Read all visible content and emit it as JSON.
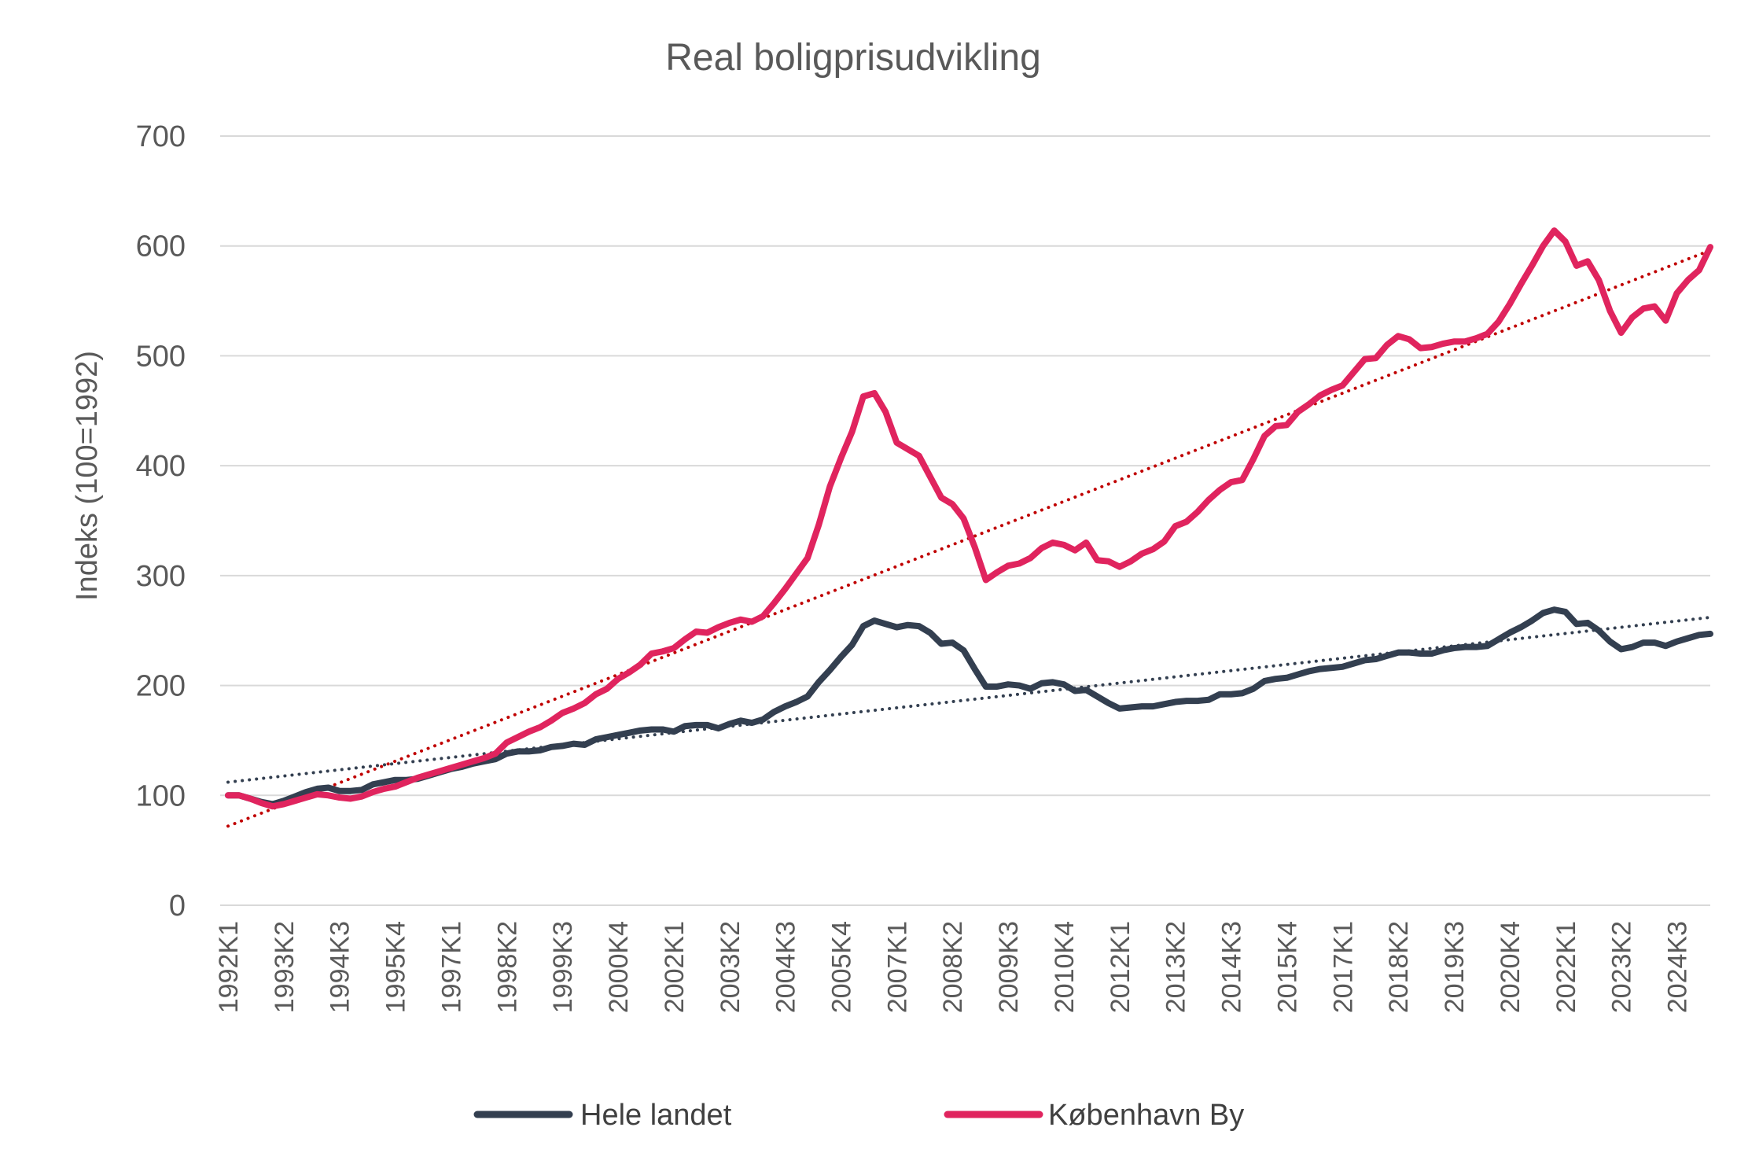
{
  "chart_data": {
    "type": "line",
    "title": "Real boligprisudvikling",
    "xlabel": "",
    "ylabel": "Indeks (100=1992)",
    "ylim": [
      0,
      700
    ],
    "yticks": [
      0,
      100,
      200,
      300,
      400,
      500,
      600,
      700
    ],
    "grid": true,
    "legend_position": "bottom",
    "x_start_year": 1992,
    "x_end_year": 2025,
    "x_tick_labels": [
      "1992K1",
      "1993K2",
      "1994K3",
      "1995K4",
      "1997K1",
      "1998K2",
      "1999K3",
      "2000K4",
      "2002K1",
      "2003K2",
      "2004K3",
      "2005K4",
      "2007K1",
      "2008K2",
      "2009K3",
      "2010K4",
      "2012K1",
      "2013K2",
      "2014K3",
      "2015K4",
      "2017K1",
      "2018K2",
      "2019K3",
      "2020K4",
      "2022K1",
      "2023K2",
      "2024K3"
    ],
    "series": [
      {
        "name": "Hele landet",
        "color": "#333f50",
        "trend_color": "#333f50",
        "trend": [
          112,
          262
        ],
        "values": [
          100,
          100,
          97,
          94,
          92,
          95,
          99,
          103,
          106,
          107,
          104,
          104,
          105,
          110,
          112,
          114,
          114,
          115,
          118,
          121,
          124,
          126,
          129,
          131,
          133,
          138,
          140,
          140,
          141,
          144,
          145,
          147,
          146,
          151,
          153,
          155,
          157,
          159,
          160,
          160,
          158,
          163,
          164,
          164,
          161,
          165,
          168,
          166,
          169,
          176,
          181,
          185,
          190,
          203,
          214,
          226,
          237,
          254,
          259,
          256,
          253,
          255,
          254,
          248,
          238,
          239,
          232,
          215,
          199,
          199,
          201,
          200,
          197,
          202,
          203,
          201,
          195,
          196,
          190,
          184,
          179,
          180,
          181,
          181,
          183,
          185,
          186,
          186,
          187,
          192,
          192,
          193,
          197,
          204,
          206,
          207,
          210,
          213,
          215,
          216,
          217,
          220,
          223,
          224,
          227,
          230,
          230,
          229,
          229,
          232,
          234,
          235,
          235,
          236,
          242,
          248,
          253,
          259,
          266,
          269,
          267,
          256,
          257,
          250,
          240,
          233,
          235,
          239,
          239,
          236,
          240,
          243,
          246,
          247
        ]
      },
      {
        "name": "København By",
        "color": "#e0245e",
        "trend_color": "#c00000",
        "trend": [
          72,
          596
        ],
        "values": [
          100,
          100,
          97,
          93,
          90,
          92,
          95,
          98,
          101,
          100,
          98,
          97,
          99,
          103,
          106,
          108,
          112,
          116,
          119,
          122,
          125,
          128,
          131,
          134,
          138,
          148,
          153,
          158,
          162,
          168,
          175,
          179,
          184,
          192,
          197,
          206,
          212,
          219,
          229,
          231,
          234,
          242,
          249,
          248,
          253,
          257,
          260,
          258,
          263,
          275,
          288,
          302,
          316,
          346,
          381,
          407,
          431,
          463,
          466,
          449,
          421,
          415,
          409,
          390,
          371,
          365,
          352,
          326,
          296,
          303,
          309,
          311,
          316,
          325,
          330,
          328,
          323,
          330,
          314,
          313,
          308,
          313,
          320,
          324,
          331,
          345,
          349,
          358,
          369,
          378,
          385,
          387,
          406,
          427,
          436,
          437,
          449,
          456,
          464,
          469,
          473,
          485,
          497,
          498,
          510,
          518,
          515,
          507,
          508,
          511,
          513,
          513,
          516,
          520,
          531,
          547,
          565,
          582,
          600,
          614,
          604,
          582,
          586,
          569,
          541,
          521,
          535,
          543,
          545,
          532,
          557,
          569,
          578,
          599
        ]
      }
    ]
  }
}
